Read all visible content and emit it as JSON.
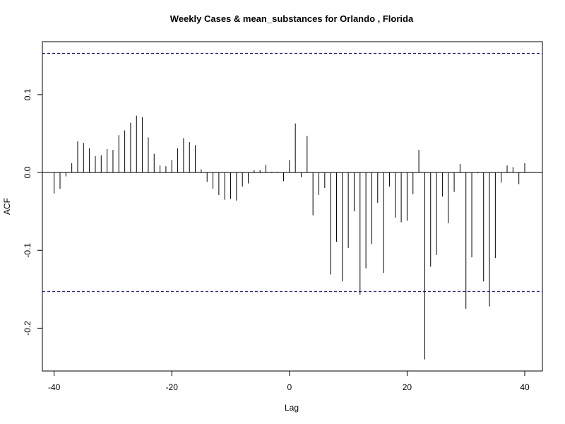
{
  "chart_data": {
    "type": "bar",
    "title": "Weekly Cases & mean_substances for Orlando , Florida",
    "xlabel": "Lag",
    "ylabel": "ACF",
    "xlim": [
      -42,
      43
    ],
    "ylim": [
      -0.255,
      0.168
    ],
    "x_ticks": [
      -40,
      -20,
      0,
      20,
      40
    ],
    "x_tick_labels": [
      "-40",
      "-20",
      "0",
      "20",
      "40"
    ],
    "y_ticks": [
      -0.2,
      -0.1,
      0.0,
      0.1
    ],
    "y_tick_labels": [
      "-0.2",
      "-0.1",
      "0.0",
      "0.1"
    ],
    "confidence_bound": 0.153,
    "confidence_color": "#0000cc",
    "line_color": "#000000",
    "grid": false,
    "lags": [
      -40,
      -39,
      -38,
      -37,
      -36,
      -35,
      -34,
      -33,
      -32,
      -31,
      -30,
      -29,
      -28,
      -27,
      -26,
      -25,
      -24,
      -23,
      -22,
      -21,
      -20,
      -19,
      -18,
      -17,
      -16,
      -15,
      -14,
      -13,
      -12,
      -11,
      -10,
      -9,
      -8,
      -7,
      -6,
      -5,
      -4,
      -3,
      -2,
      -1,
      0,
      1,
      2,
      3,
      4,
      5,
      6,
      7,
      8,
      9,
      10,
      11,
      12,
      13,
      14,
      15,
      16,
      17,
      18,
      19,
      20,
      21,
      22,
      23,
      24,
      25,
      26,
      27,
      28,
      29,
      30,
      31,
      32,
      33,
      34,
      35,
      36,
      37,
      38,
      39,
      40
    ],
    "acf": [
      -0.027,
      -0.021,
      -0.005,
      0.012,
      0.04,
      0.038,
      0.031,
      0.021,
      0.022,
      0.03,
      0.029,
      0.048,
      0.054,
      0.064,
      0.073,
      0.071,
      0.045,
      0.024,
      0.009,
      0.008,
      0.016,
      0.031,
      0.044,
      0.039,
      0.035,
      0.004,
      -0.012,
      -0.021,
      -0.029,
      -0.035,
      -0.034,
      -0.036,
      -0.018,
      -0.014,
      0.003,
      0.003,
      0.01,
      0.001,
      0.001,
      -0.011,
      0.016,
      0.063,
      -0.006,
      0.047,
      -0.055,
      -0.029,
      -0.02,
      -0.131,
      -0.089,
      -0.14,
      -0.097,
      -0.05,
      -0.157,
      -0.123,
      -0.092,
      -0.039,
      -0.129,
      -0.018,
      -0.058,
      -0.064,
      -0.062,
      -0.028,
      0.029,
      -0.24,
      -0.121,
      -0.106,
      -0.031,
      -0.065,
      -0.025,
      0.011,
      -0.175,
      -0.109,
      -0.001,
      -0.14,
      -0.172,
      -0.11,
      -0.013,
      0.009,
      0.007,
      -0.015,
      0.012
    ]
  }
}
